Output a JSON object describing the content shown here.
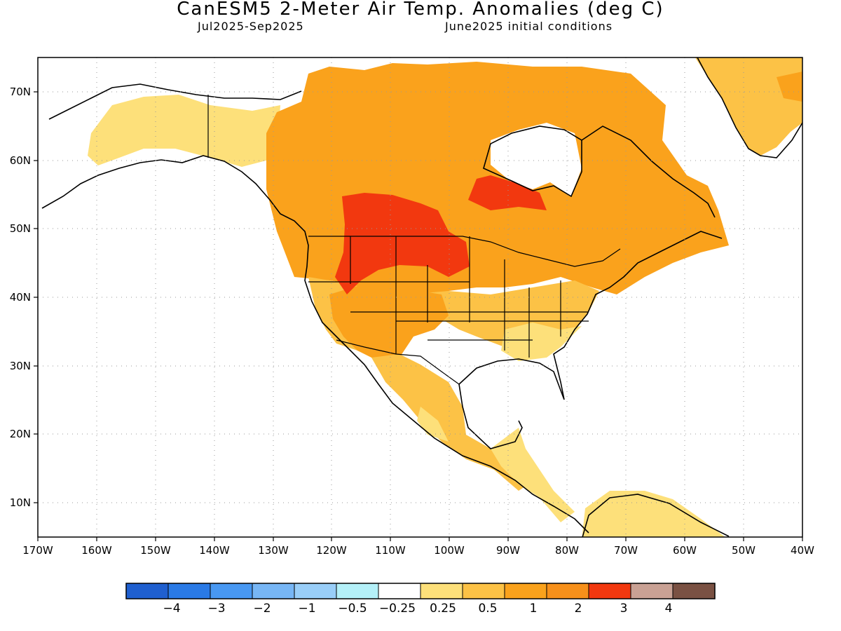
{
  "header": {
    "title": "CanESM5 2-Meter Air Temp. Anomalies (deg C)",
    "period": "Jul2025-Sep2025",
    "init": "June2025 initial conditions"
  },
  "map": {
    "lon_range": [
      -170,
      -40
    ],
    "lat_range": [
      5,
      75
    ],
    "lon_labels": [
      "170W",
      "160W",
      "150W",
      "140W",
      "130W",
      "120W",
      "110W",
      "100W",
      "90W",
      "80W",
      "70W",
      "60W",
      "50W",
      "40W"
    ],
    "lat_labels": [
      "10N",
      "20N",
      "30N",
      "40N",
      "50N",
      "60N",
      "70N"
    ],
    "grid": "dotted"
  },
  "colorbar": {
    "colors": [
      "#1f5fcf",
      "#2a7ae6",
      "#4898f2",
      "#77b6f5",
      "#99cef8",
      "#b4f0f8",
      "#ffffff",
      "#fde07a",
      "#fcc246",
      "#faa21c",
      "#f7901a",
      "#f2380f",
      "#c9a194",
      "#7a5143"
    ],
    "labels": [
      "−4",
      "−3",
      "−2",
      "−1",
      "−0.5",
      "−0.25",
      "0.25",
      "0.5",
      "1",
      "2",
      "3",
      "4"
    ]
  }
}
